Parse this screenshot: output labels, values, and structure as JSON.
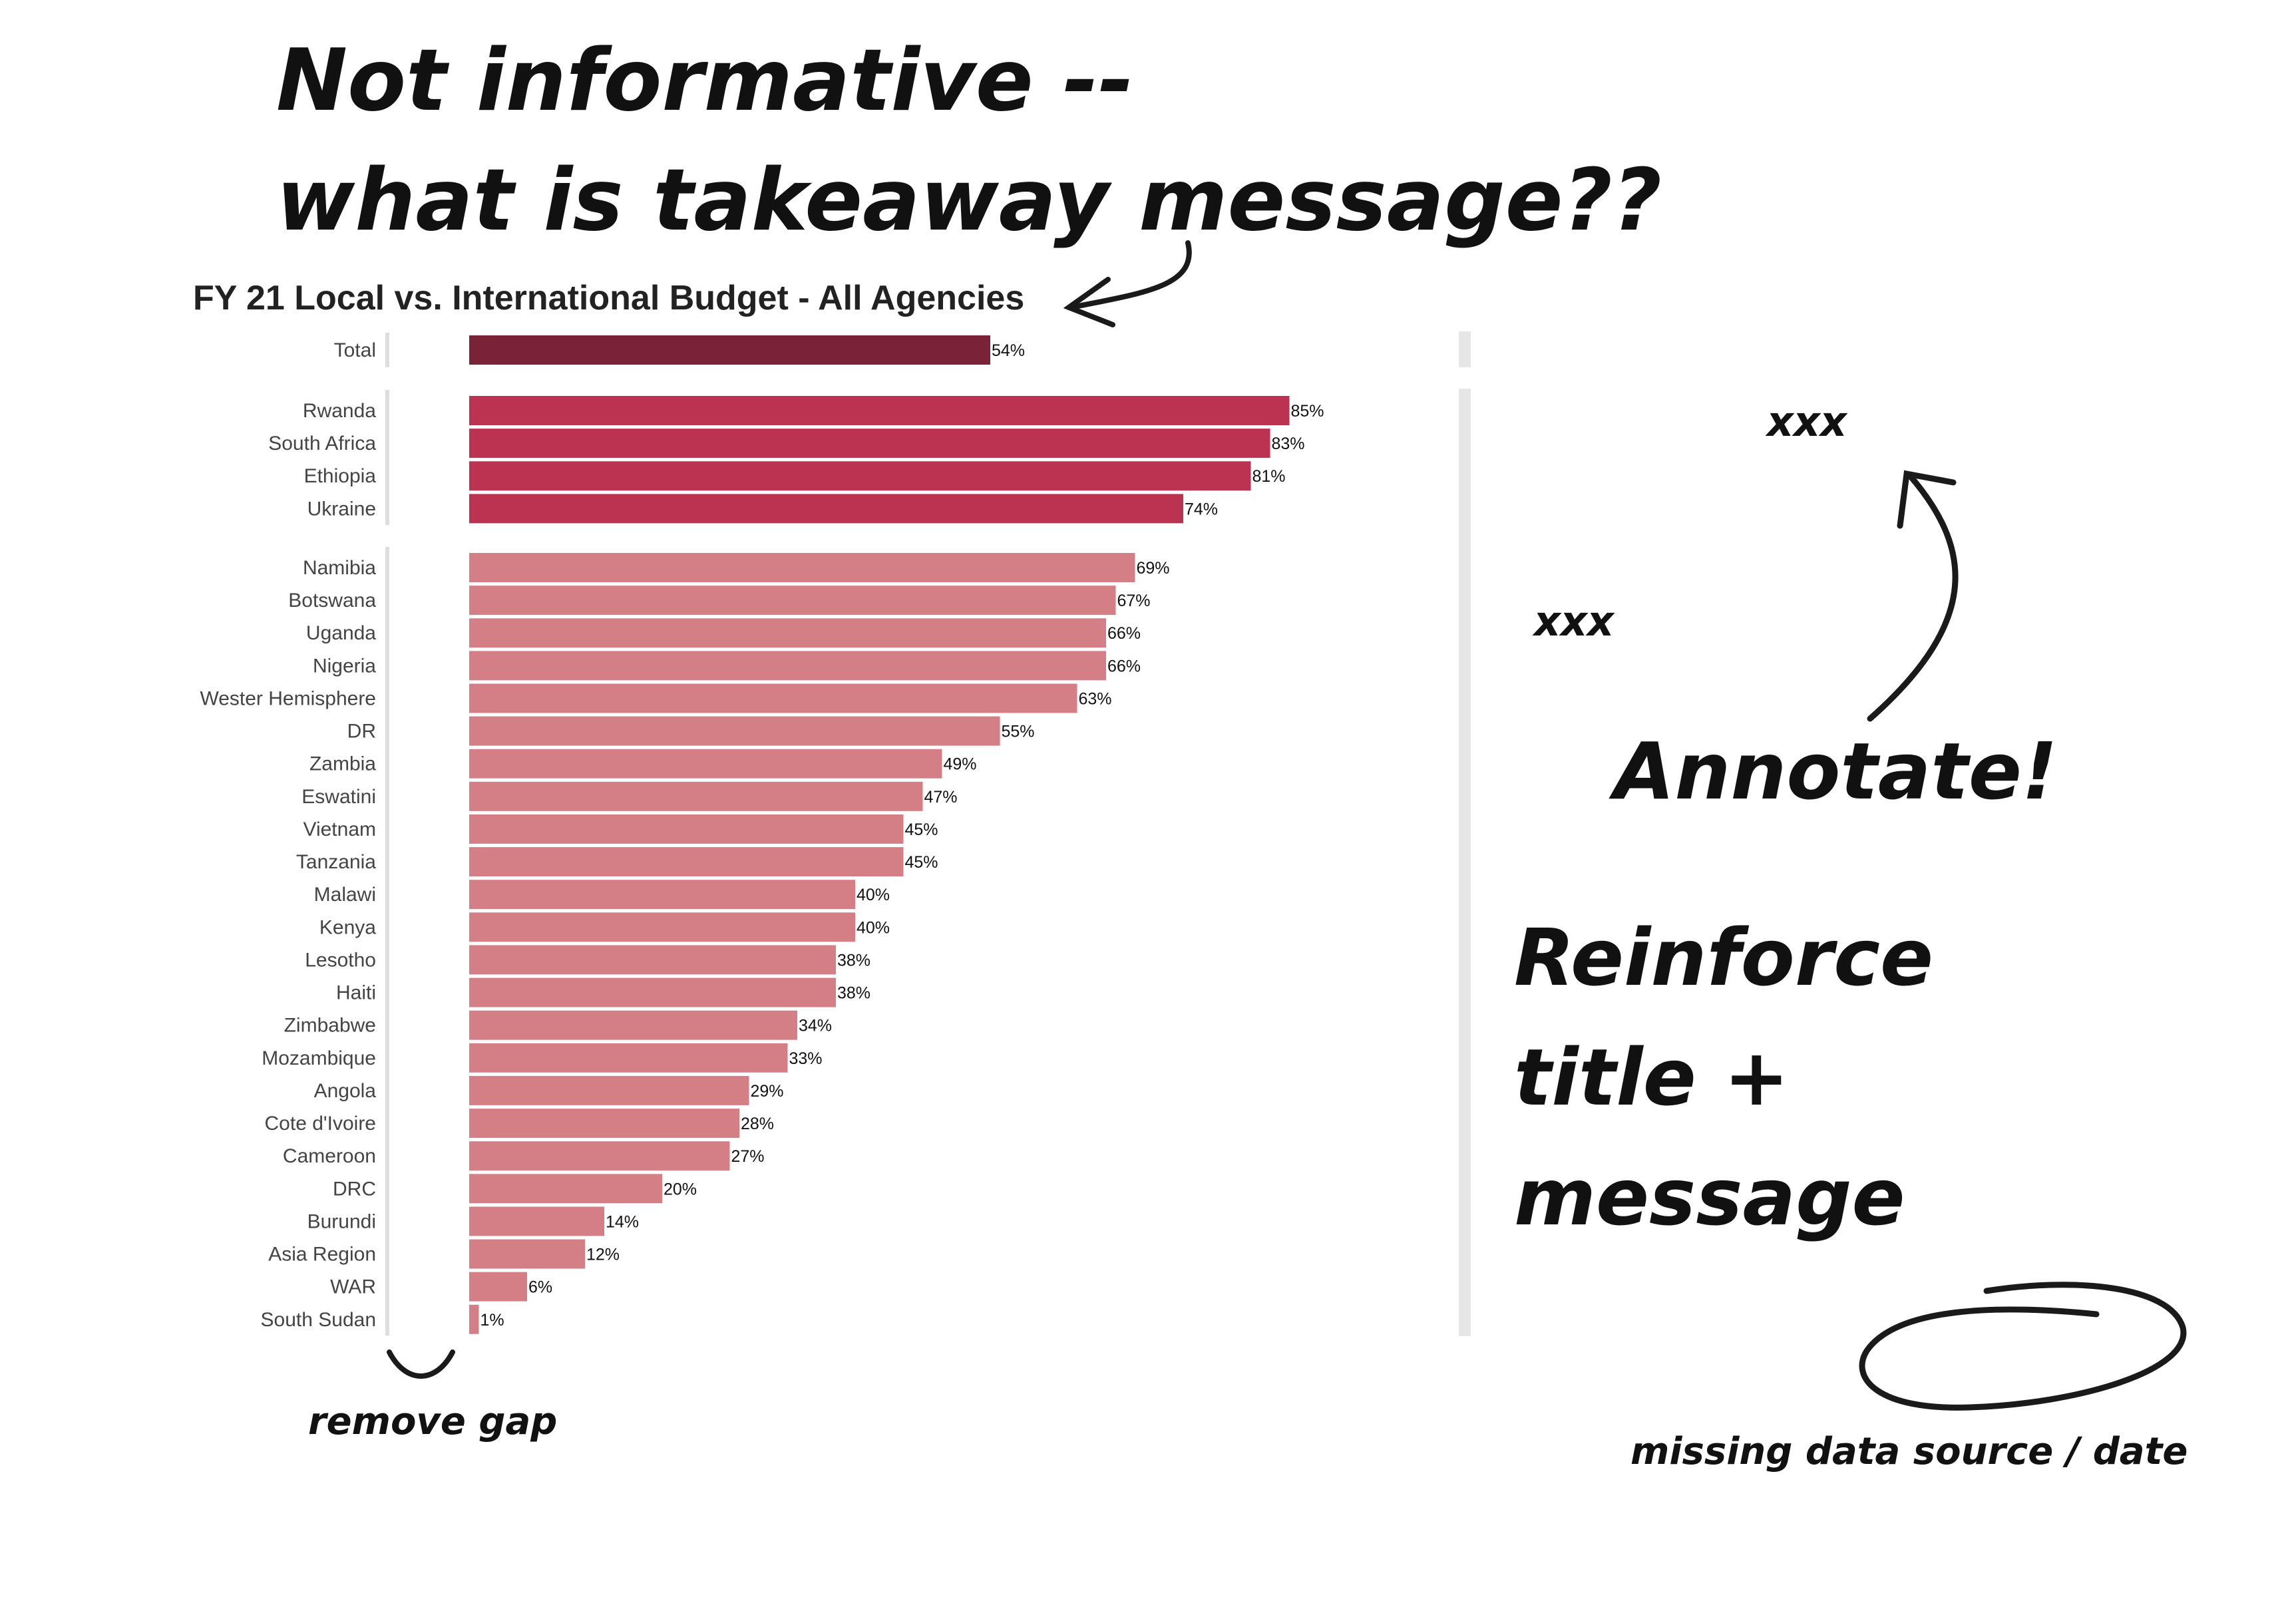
{
  "chart_data": {
    "type": "bar",
    "orientation": "horizontal",
    "title": "FY 21 Local vs. International Budget - All Agencies",
    "xlim": [
      0,
      100
    ],
    "grid": false,
    "groups": [
      {
        "name": "total",
        "color": "#7a2338",
        "items": [
          {
            "label": "Total",
            "value": 54,
            "text": "54%"
          }
        ]
      },
      {
        "name": "top",
        "color": "#bc3351",
        "items": [
          {
            "label": "Rwanda",
            "value": 85,
            "text": "85%"
          },
          {
            "label": "South Africa",
            "value": 83,
            "text": "83%"
          },
          {
            "label": "Ethiopia",
            "value": 81,
            "text": "81%"
          },
          {
            "label": "Ukraine",
            "value": 74,
            "text": "74%"
          }
        ]
      },
      {
        "name": "rest",
        "color": "#d47f86",
        "items": [
          {
            "label": "Namibia",
            "value": 69,
            "text": "69%"
          },
          {
            "label": "Botswana",
            "value": 67,
            "text": "67%"
          },
          {
            "label": "Uganda",
            "value": 66,
            "text": "66%"
          },
          {
            "label": "Nigeria",
            "value": 66,
            "text": "66%"
          },
          {
            "label": "Wester Hemisphere",
            "value": 63,
            "text": "63%"
          },
          {
            "label": "DR",
            "value": 55,
            "text": "55%"
          },
          {
            "label": "Zambia",
            "value": 49,
            "text": "49%"
          },
          {
            "label": "Eswatini",
            "value": 47,
            "text": "47%"
          },
          {
            "label": "Vietnam",
            "value": 45,
            "text": "45%"
          },
          {
            "label": "Tanzania",
            "value": 45,
            "text": "45%"
          },
          {
            "label": "Malawi",
            "value": 40,
            "text": "40%"
          },
          {
            "label": "Kenya",
            "value": 40,
            "text": "40%"
          },
          {
            "label": "Lesotho",
            "value": 38,
            "text": "38%"
          },
          {
            "label": "Haiti",
            "value": 38,
            "text": "38%"
          },
          {
            "label": "Zimbabwe",
            "value": 34,
            "text": "34%"
          },
          {
            "label": "Mozambique",
            "value": 33,
            "text": "33%"
          },
          {
            "label": "Angola",
            "value": 29,
            "text": "29%"
          },
          {
            "label": "Cote d'Ivoire",
            "value": 28,
            "text": "28%"
          },
          {
            "label": "Cameroon",
            "value": 27,
            "text": "27%"
          },
          {
            "label": "DRC",
            "value": 20,
            "text": "20%"
          },
          {
            "label": "Burundi",
            "value": 14,
            "text": "14%"
          },
          {
            "label": "Asia Region",
            "value": 12,
            "text": "12%"
          },
          {
            "label": "WAR",
            "value": 6,
            "text": "6%"
          },
          {
            "label": "South Sudan",
            "value": 1,
            "text": "1%"
          }
        ]
      }
    ]
  },
  "annotations": {
    "headline_line1": "Not informative --",
    "headline_line2": "what is takeaway message??",
    "xxx_top": "xxx",
    "xxx_mid": "xxx",
    "annotate": "Annotate!",
    "reinforce_line1": "Reinforce",
    "reinforce_line2": "title +",
    "reinforce_line3": "message",
    "remove_gap": "remove gap",
    "missing_source": "missing data source / date"
  }
}
